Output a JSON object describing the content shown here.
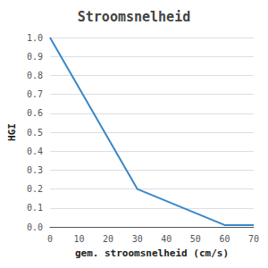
{
  "chart_data": {
    "type": "line",
    "title": "Stroomsnelheid",
    "xlabel": "gem. stroomsnelheid (cm/s)",
    "ylabel": "HGI",
    "x": [
      0,
      30,
      60,
      70
    ],
    "values": [
      1.0,
      0.2,
      0.01,
      0.01
    ],
    "color": "#3a87c8",
    "xlim": [
      0,
      70
    ],
    "ylim": [
      0,
      1.0
    ],
    "xticks": [
      0,
      10,
      20,
      30,
      40,
      50,
      60,
      70
    ],
    "yticks": [
      {
        "value": 0.0,
        "label": "0.0"
      },
      0.1,
      0.2,
      0.3,
      0.4,
      0.5,
      0.6,
      0.7,
      0.8,
      0.9,
      {
        "value": 1.0,
        "label": "1.0"
      }
    ],
    "grid": true
  }
}
